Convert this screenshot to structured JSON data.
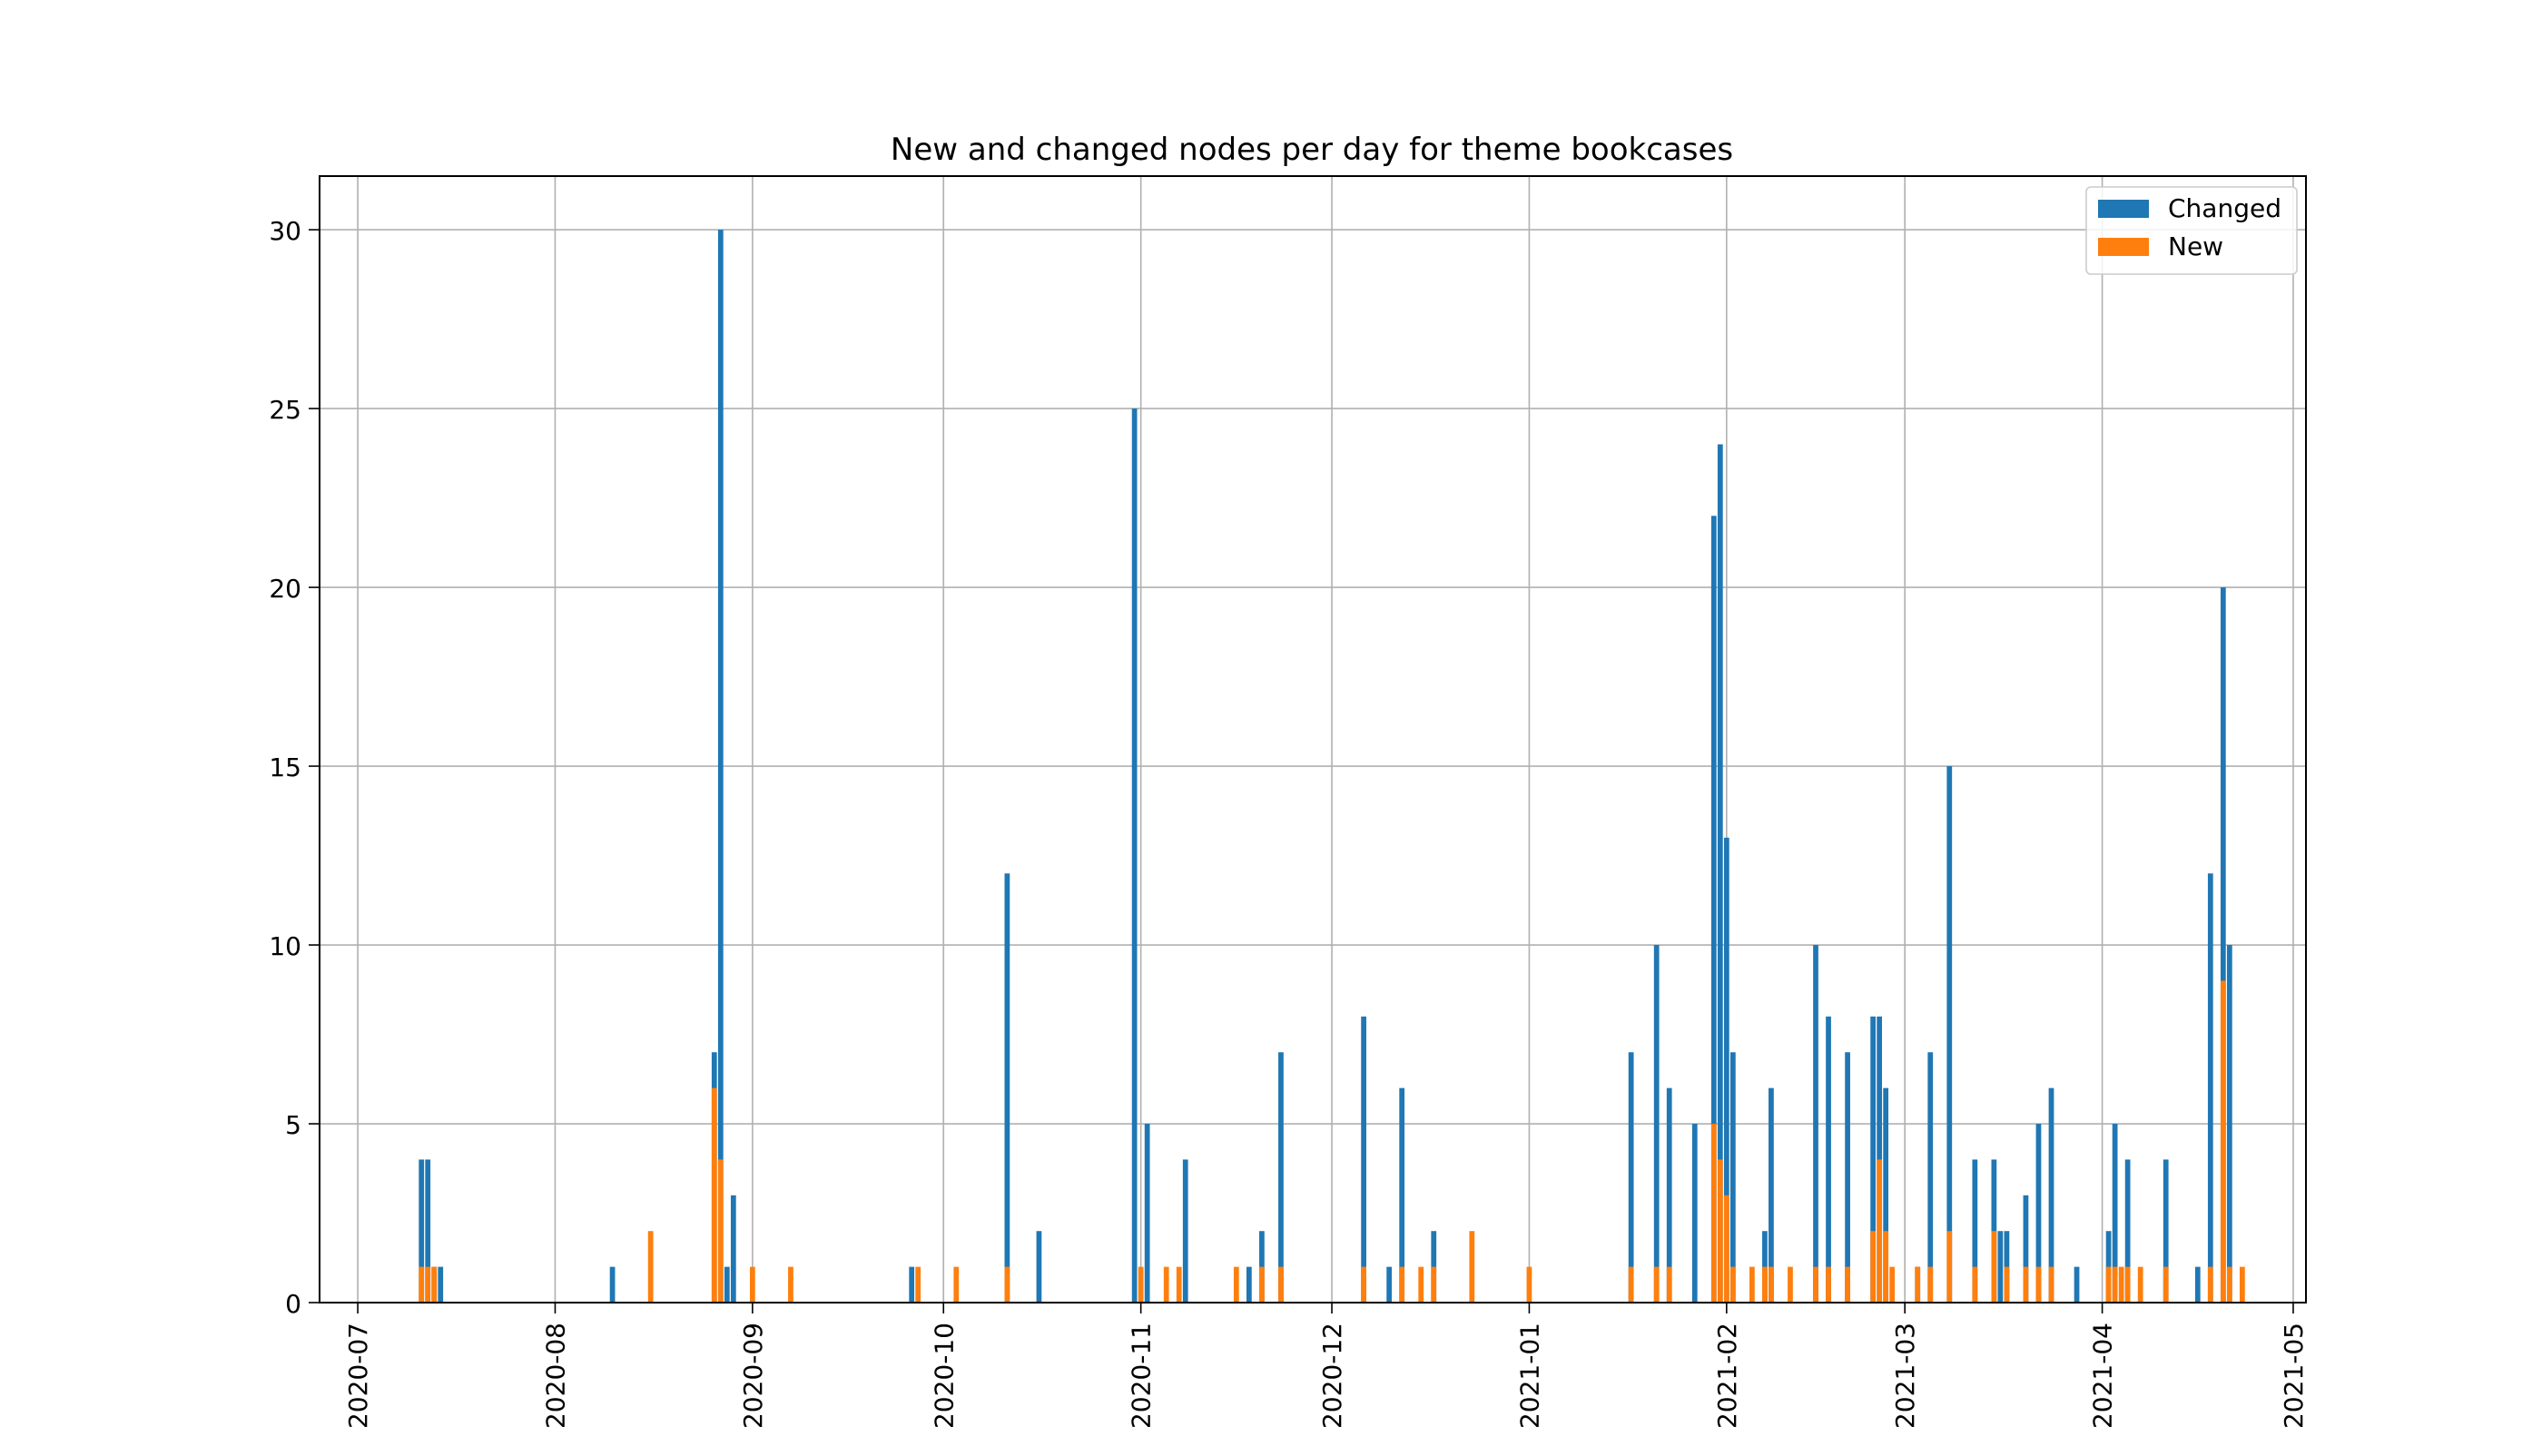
{
  "chart_data": {
    "type": "bar",
    "title": "New and changed nodes per day for theme bookcases",
    "xlabel": "",
    "ylabel": "",
    "x_axis_type": "date",
    "xlim": [
      "2020-06-25",
      "2021-05-03"
    ],
    "ylim": [
      0,
      31.5
    ],
    "x_ticks": [
      "2020-07",
      "2020-08",
      "2020-09",
      "2020-10",
      "2020-11",
      "2020-12",
      "2021-01",
      "2021-02",
      "2021-03",
      "2021-04",
      "2021-05"
    ],
    "y_ticks": [
      0,
      5,
      10,
      15,
      20,
      25,
      30
    ],
    "grid": true,
    "legend_position": "top-right",
    "series": [
      {
        "name": "Changed",
        "color": "#1f77b4",
        "points": [
          [
            "2020-07-11",
            4
          ],
          [
            "2020-07-12",
            4
          ],
          [
            "2020-07-13",
            1
          ],
          [
            "2020-07-14",
            1
          ],
          [
            "2020-08-10",
            1
          ],
          [
            "2020-08-26",
            7
          ],
          [
            "2020-08-27",
            30
          ],
          [
            "2020-08-28",
            1
          ],
          [
            "2020-08-29",
            3
          ],
          [
            "2020-09-26",
            1
          ],
          [
            "2020-10-11",
            12
          ],
          [
            "2020-10-16",
            2
          ],
          [
            "2020-10-31",
            25
          ],
          [
            "2020-11-02",
            5
          ],
          [
            "2020-11-08",
            4
          ],
          [
            "2020-11-18",
            1
          ],
          [
            "2020-11-20",
            2
          ],
          [
            "2020-11-23",
            7
          ],
          [
            "2020-12-06",
            8
          ],
          [
            "2020-12-10",
            1
          ],
          [
            "2020-12-12",
            6
          ],
          [
            "2020-12-17",
            2
          ],
          [
            "2021-01-17",
            7
          ],
          [
            "2021-01-21",
            10
          ],
          [
            "2021-01-23",
            6
          ],
          [
            "2021-01-27",
            5
          ],
          [
            "2021-01-30",
            22
          ],
          [
            "2021-01-31",
            24
          ],
          [
            "2021-02-01",
            13
          ],
          [
            "2021-02-02",
            7
          ],
          [
            "2021-02-07",
            2
          ],
          [
            "2021-02-08",
            6
          ],
          [
            "2021-02-15",
            10
          ],
          [
            "2021-02-17",
            8
          ],
          [
            "2021-02-20",
            7
          ],
          [
            "2021-02-24",
            8
          ],
          [
            "2021-02-25",
            8
          ],
          [
            "2021-02-26",
            6
          ],
          [
            "2021-03-03",
            1
          ],
          [
            "2021-03-05",
            7
          ],
          [
            "2021-03-08",
            15
          ],
          [
            "2021-03-12",
            4
          ],
          [
            "2021-03-15",
            4
          ],
          [
            "2021-03-16",
            2
          ],
          [
            "2021-03-17",
            2
          ],
          [
            "2021-03-20",
            3
          ],
          [
            "2021-03-22",
            5
          ],
          [
            "2021-03-24",
            6
          ],
          [
            "2021-03-28",
            1
          ],
          [
            "2021-04-02",
            2
          ],
          [
            "2021-04-03",
            5
          ],
          [
            "2021-04-05",
            4
          ],
          [
            "2021-04-11",
            4
          ],
          [
            "2021-04-16",
            1
          ],
          [
            "2021-04-18",
            12
          ],
          [
            "2021-04-20",
            20
          ],
          [
            "2021-04-21",
            10
          ]
        ]
      },
      {
        "name": "New",
        "color": "#ff7f0e",
        "points": [
          [
            "2020-07-11",
            1
          ],
          [
            "2020-07-12",
            1
          ],
          [
            "2020-07-13",
            1
          ],
          [
            "2020-08-16",
            2
          ],
          [
            "2020-08-26",
            6
          ],
          [
            "2020-08-27",
            4
          ],
          [
            "2020-09-01",
            1
          ],
          [
            "2020-09-07",
            1
          ],
          [
            "2020-09-27",
            1
          ],
          [
            "2020-10-03",
            1
          ],
          [
            "2020-10-11",
            1
          ],
          [
            "2020-11-01",
            1
          ],
          [
            "2020-11-05",
            1
          ],
          [
            "2020-11-07",
            1
          ],
          [
            "2020-11-16",
            1
          ],
          [
            "2020-11-20",
            1
          ],
          [
            "2020-11-23",
            1
          ],
          [
            "2020-12-06",
            1
          ],
          [
            "2020-12-12",
            1
          ],
          [
            "2020-12-15",
            1
          ],
          [
            "2020-12-17",
            1
          ],
          [
            "2020-12-23",
            2
          ],
          [
            "2021-01-01",
            1
          ],
          [
            "2021-01-17",
            1
          ],
          [
            "2021-01-21",
            1
          ],
          [
            "2021-01-23",
            1
          ],
          [
            "2021-01-30",
            5
          ],
          [
            "2021-01-31",
            4
          ],
          [
            "2021-02-01",
            3
          ],
          [
            "2021-02-02",
            1
          ],
          [
            "2021-02-05",
            1
          ],
          [
            "2021-02-07",
            1
          ],
          [
            "2021-02-08",
            1
          ],
          [
            "2021-02-11",
            1
          ],
          [
            "2021-02-15",
            1
          ],
          [
            "2021-02-17",
            1
          ],
          [
            "2021-02-20",
            1
          ],
          [
            "2021-02-24",
            2
          ],
          [
            "2021-02-25",
            4
          ],
          [
            "2021-02-26",
            2
          ],
          [
            "2021-02-27",
            1
          ],
          [
            "2021-03-03",
            1
          ],
          [
            "2021-03-05",
            1
          ],
          [
            "2021-03-08",
            2
          ],
          [
            "2021-03-12",
            1
          ],
          [
            "2021-03-15",
            2
          ],
          [
            "2021-03-17",
            1
          ],
          [
            "2021-03-20",
            1
          ],
          [
            "2021-03-22",
            1
          ],
          [
            "2021-03-24",
            1
          ],
          [
            "2021-04-02",
            1
          ],
          [
            "2021-04-03",
            1
          ],
          [
            "2021-04-04",
            1
          ],
          [
            "2021-04-05",
            1
          ],
          [
            "2021-04-07",
            1
          ],
          [
            "2021-04-11",
            1
          ],
          [
            "2021-04-18",
            1
          ],
          [
            "2021-04-20",
            9
          ],
          [
            "2021-04-21",
            1
          ],
          [
            "2021-04-23",
            1
          ]
        ]
      }
    ]
  }
}
